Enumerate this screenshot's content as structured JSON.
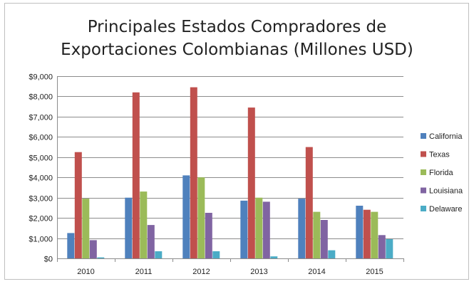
{
  "chart_data": {
    "type": "bar",
    "title_lines": [
      "Principales Estados Compradores de",
      "Exportaciones Colombianas (Millones USD)"
    ],
    "categories": [
      "2010",
      "2011",
      "2012",
      "2013",
      "2014",
      "2015"
    ],
    "ylim": [
      0,
      9000
    ],
    "y_ticks": [
      0,
      1000,
      2000,
      3000,
      4000,
      5000,
      6000,
      7000,
      8000,
      9000
    ],
    "y_tick_labels": [
      "$0",
      "$1,000",
      "$2,000",
      "$3,000",
      "$4,000",
      "$5,000",
      "$6,000",
      "$7,000",
      "$8,000",
      "$9,000"
    ],
    "grid": true,
    "legend_position": "right",
    "series": [
      {
        "name": "California",
        "color": "#4f81bd",
        "values": [
          1250,
          3000,
          4100,
          2850,
          2950,
          2600
        ]
      },
      {
        "name": "Texas",
        "color": "#c0504d",
        "values": [
          5250,
          8200,
          8450,
          7450,
          5500,
          2400
        ]
      },
      {
        "name": "Florida",
        "color": "#9bbb59",
        "values": [
          2950,
          3300,
          4000,
          3000,
          2300,
          2300
        ]
      },
      {
        "name": "Louisiana",
        "color": "#8064a2",
        "values": [
          900,
          1650,
          2250,
          2800,
          1900,
          1150
        ]
      },
      {
        "name": "Delaware",
        "color": "#4bacc6",
        "values": [
          50,
          350,
          350,
          100,
          400,
          950
        ]
      }
    ]
  }
}
